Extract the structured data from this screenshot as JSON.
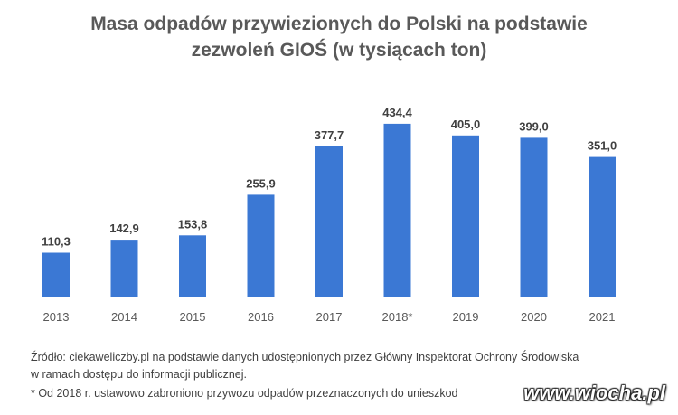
{
  "chart_data": {
    "type": "bar",
    "title": [
      "Masa odpadów przywiezionych do Polski na podstawie",
      "zezwoleń GIOŚ (w tysiącach ton)"
    ],
    "categories": [
      "2013",
      "2014",
      "2015",
      "2016",
      "2017",
      "2018*",
      "2019",
      "2020",
      "2021"
    ],
    "values": [
      110.3,
      142.9,
      153.8,
      255.9,
      377.7,
      434.4,
      405.0,
      399.0,
      351.0
    ],
    "value_labels": [
      "110,3",
      "142,9",
      "153,8",
      "255,9",
      "377,7",
      "434,4",
      "405,0",
      "399,0",
      "351,0"
    ],
    "ylim": [
      0,
      450
    ],
    "grid": false,
    "bar_color": "#3b78d4"
  },
  "source": [
    "Źródło: ciekaweliczby.pl na podstawie danych udostępnionych przez Główny Inspektorat Ochrony Środowiska",
    "w ramach dostępu do informacji publicznej."
  ],
  "footnote": "* Od 2018 r. ustawowo zabroniono przywozu odpadów przeznaczonych do unieszkod",
  "watermark": "www.wiocha.pl"
}
